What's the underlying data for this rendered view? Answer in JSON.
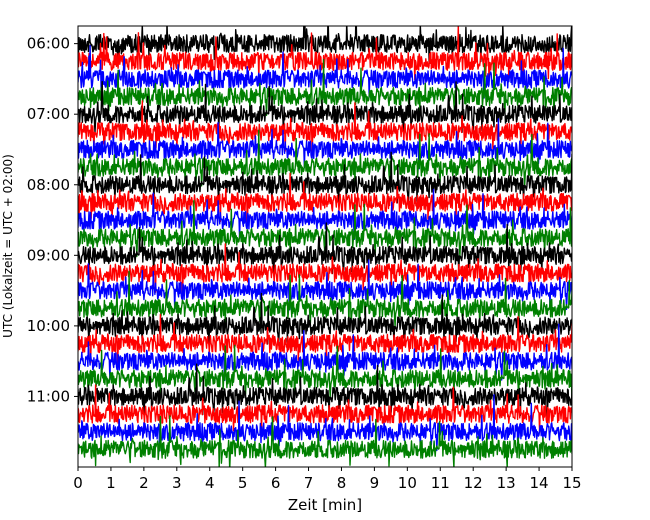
{
  "chart_data": {
    "type": "line",
    "title": "",
    "xlabel": "Zeit  [min]",
    "ylabel": "UTC (Lokalzeit = UTC + 02:00)",
    "xlim": [
      0,
      15
    ],
    "xticks": [
      0,
      1,
      2,
      3,
      4,
      5,
      6,
      7,
      8,
      9,
      10,
      11,
      12,
      13,
      14,
      15
    ],
    "ylim_hours": [
      5.75,
      12.0
    ],
    "yticks": [
      {
        "hour": 6.0,
        "label": "06:00"
      },
      {
        "hour": 7.0,
        "label": "07:00"
      },
      {
        "hour": 8.0,
        "label": "08:00"
      },
      {
        "hour": 9.0,
        "label": "09:00"
      },
      {
        "hour": 10.0,
        "label": "10:00"
      },
      {
        "hour": 11.0,
        "label": "11:00"
      }
    ],
    "trace_interval_min": 15,
    "trace_start_utc": "06:00",
    "trace_end_utc": "11:45",
    "trace_count": 24,
    "trace_colors": [
      "#000000",
      "#ff0000",
      "#0000ff",
      "#008000"
    ],
    "grid": false,
    "legend": "none"
  }
}
